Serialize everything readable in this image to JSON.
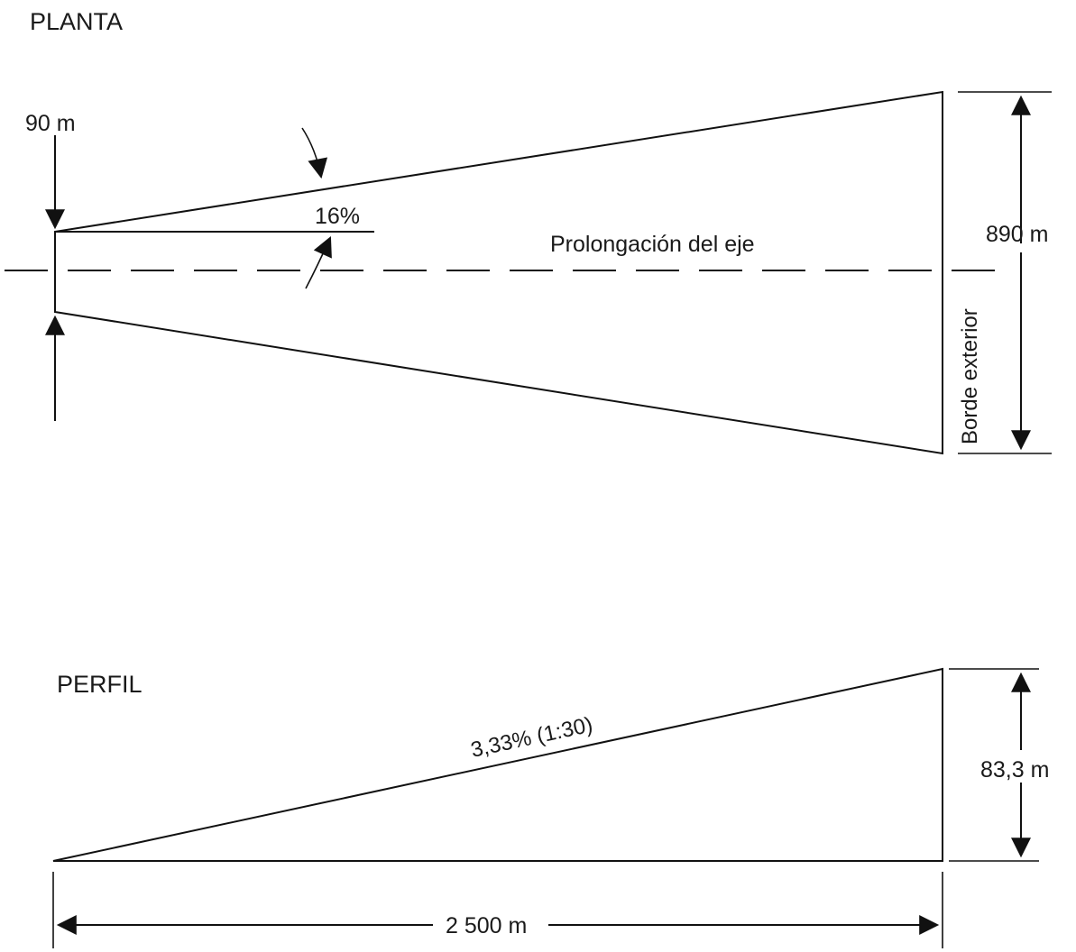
{
  "plan": {
    "title": "PLANTA",
    "inner_width_label": "90 m",
    "slope_label": "16%",
    "axis_label": "Prolongación del eje",
    "outer_width_label": "890 m",
    "outer_edge_label": "Borde exterior"
  },
  "profile": {
    "title": "PERFIL",
    "slope_label": "3,33% (1:30)",
    "height_label": "83,3 m",
    "length_label": "2 500 m"
  }
}
